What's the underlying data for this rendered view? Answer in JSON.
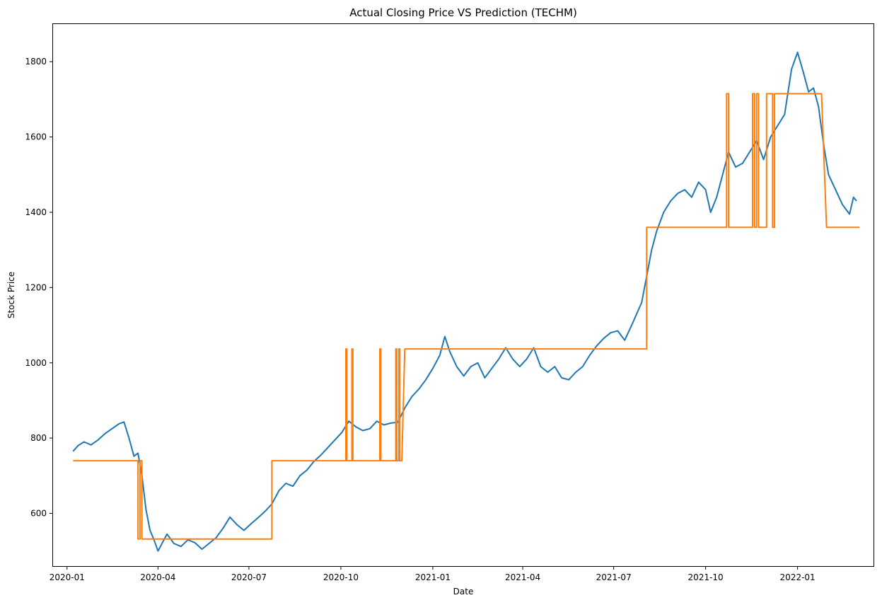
{
  "chart_data": {
    "type": "line",
    "title": "Actual Closing Price VS Prediction (TECHM)",
    "xlabel": "Date",
    "ylabel": "Stock Price",
    "xlim": [
      "2019-12-18",
      "2022-03-18"
    ],
    "ylim": [
      460,
      1900
    ],
    "grid": false,
    "x_ticks": [
      "2020-01-01",
      "2020-04-01",
      "2020-07-01",
      "2020-10-01",
      "2021-01-01",
      "2021-04-01",
      "2021-07-01",
      "2021-10-01",
      "2022-01-01"
    ],
    "x_tick_labels": [
      "2020-01",
      "2020-04",
      "2020-07",
      "2020-10",
      "2021-01",
      "2021-04",
      "2021-07",
      "2021-10",
      "2022-01"
    ],
    "y_ticks": [
      600,
      800,
      1000,
      1200,
      1400,
      1600,
      1800
    ],
    "y_tick_labels": [
      "600",
      "800",
      "1000",
      "1200",
      "1400",
      "1600",
      "1800"
    ],
    "series": [
      {
        "color": "#1f77b4",
        "points": [
          [
            "2020-01-07",
            765
          ],
          [
            "2020-01-12",
            780
          ],
          [
            "2020-01-18",
            790
          ],
          [
            "2020-01-25",
            782
          ],
          [
            "2020-02-01",
            795
          ],
          [
            "2020-02-08",
            812
          ],
          [
            "2020-02-15",
            825
          ],
          [
            "2020-02-22",
            838
          ],
          [
            "2020-02-27",
            843
          ],
          [
            "2020-03-03",
            800
          ],
          [
            "2020-03-08",
            752
          ],
          [
            "2020-03-12",
            760
          ],
          [
            "2020-03-16",
            700
          ],
          [
            "2020-03-20",
            610
          ],
          [
            "2020-03-24",
            555
          ],
          [
            "2020-03-28",
            530
          ],
          [
            "2020-04-01",
            500
          ],
          [
            "2020-04-05",
            520
          ],
          [
            "2020-04-10",
            545
          ],
          [
            "2020-04-17",
            520
          ],
          [
            "2020-04-24",
            512
          ],
          [
            "2020-05-01",
            530
          ],
          [
            "2020-05-08",
            522
          ],
          [
            "2020-05-15",
            505
          ],
          [
            "2020-05-22",
            520
          ],
          [
            "2020-05-29",
            535
          ],
          [
            "2020-06-05",
            560
          ],
          [
            "2020-06-12",
            590
          ],
          [
            "2020-06-19",
            570
          ],
          [
            "2020-06-26",
            555
          ],
          [
            "2020-07-03",
            572
          ],
          [
            "2020-07-10",
            588
          ],
          [
            "2020-07-17",
            605
          ],
          [
            "2020-07-24",
            625
          ],
          [
            "2020-07-31",
            660
          ],
          [
            "2020-08-07",
            680
          ],
          [
            "2020-08-14",
            672
          ],
          [
            "2020-08-21",
            700
          ],
          [
            "2020-08-28",
            715
          ],
          [
            "2020-09-04",
            738
          ],
          [
            "2020-09-11",
            755
          ],
          [
            "2020-09-18",
            775
          ],
          [
            "2020-09-25",
            795
          ],
          [
            "2020-10-02",
            815
          ],
          [
            "2020-10-09",
            845
          ],
          [
            "2020-10-16",
            830
          ],
          [
            "2020-10-23",
            820
          ],
          [
            "2020-10-30",
            825
          ],
          [
            "2020-11-06",
            845
          ],
          [
            "2020-11-13",
            835
          ],
          [
            "2020-11-20",
            840
          ],
          [
            "2020-11-27",
            842
          ],
          [
            "2020-12-04",
            880
          ],
          [
            "2020-12-11",
            910
          ],
          [
            "2020-12-18",
            930
          ],
          [
            "2020-12-25",
            955
          ],
          [
            "2021-01-01",
            985
          ],
          [
            "2021-01-08",
            1020
          ],
          [
            "2021-01-13",
            1070
          ],
          [
            "2021-01-18",
            1030
          ],
          [
            "2021-01-25",
            990
          ],
          [
            "2021-02-01",
            965
          ],
          [
            "2021-02-08",
            990
          ],
          [
            "2021-02-15",
            1000
          ],
          [
            "2021-02-22",
            960
          ],
          [
            "2021-03-01",
            985
          ],
          [
            "2021-03-08",
            1010
          ],
          [
            "2021-03-15",
            1040
          ],
          [
            "2021-03-22",
            1010
          ],
          [
            "2021-03-29",
            990
          ],
          [
            "2021-04-05",
            1010
          ],
          [
            "2021-04-12",
            1040
          ],
          [
            "2021-04-19",
            990
          ],
          [
            "2021-04-26",
            975
          ],
          [
            "2021-05-03",
            990
          ],
          [
            "2021-05-10",
            960
          ],
          [
            "2021-05-17",
            955
          ],
          [
            "2021-05-24",
            975
          ],
          [
            "2021-05-31",
            990
          ],
          [
            "2021-06-07",
            1020
          ],
          [
            "2021-06-14",
            1045
          ],
          [
            "2021-06-21",
            1065
          ],
          [
            "2021-06-28",
            1080
          ],
          [
            "2021-07-05",
            1085
          ],
          [
            "2021-07-12",
            1060
          ],
          [
            "2021-07-19",
            1100
          ],
          [
            "2021-07-24",
            1130
          ],
          [
            "2021-07-29",
            1160
          ],
          [
            "2021-08-03",
            1230
          ],
          [
            "2021-08-08",
            1300
          ],
          [
            "2021-08-13",
            1350
          ],
          [
            "2021-08-20",
            1400
          ],
          [
            "2021-08-27",
            1430
          ],
          [
            "2021-09-03",
            1450
          ],
          [
            "2021-09-10",
            1460
          ],
          [
            "2021-09-17",
            1440
          ],
          [
            "2021-09-24",
            1480
          ],
          [
            "2021-10-01",
            1460
          ],
          [
            "2021-10-06",
            1400
          ],
          [
            "2021-10-12",
            1440
          ],
          [
            "2021-10-18",
            1500
          ],
          [
            "2021-10-24",
            1560
          ],
          [
            "2021-10-31",
            1520
          ],
          [
            "2021-11-07",
            1530
          ],
          [
            "2021-11-14",
            1560
          ],
          [
            "2021-11-21",
            1590
          ],
          [
            "2021-11-28",
            1540
          ],
          [
            "2021-12-05",
            1600
          ],
          [
            "2021-12-12",
            1630
          ],
          [
            "2021-12-19",
            1660
          ],
          [
            "2021-12-26",
            1780
          ],
          [
            "2022-01-01",
            1825
          ],
          [
            "2022-01-07",
            1770
          ],
          [
            "2022-01-12",
            1720
          ],
          [
            "2022-01-17",
            1730
          ],
          [
            "2022-01-22",
            1680
          ],
          [
            "2022-01-27",
            1580
          ],
          [
            "2022-02-01",
            1500
          ],
          [
            "2022-02-08",
            1460
          ],
          [
            "2022-02-15",
            1420
          ],
          [
            "2022-02-22",
            1395
          ],
          [
            "2022-02-26",
            1440
          ],
          [
            "2022-03-01",
            1430
          ]
        ]
      },
      {
        "color": "#ff7f0e",
        "points": [
          [
            "2020-01-07",
            740
          ],
          [
            "2020-03-12",
            740
          ],
          [
            "2020-03-12",
            532
          ],
          [
            "2020-03-14",
            532
          ],
          [
            "2020-03-14",
            740
          ],
          [
            "2020-03-16",
            740
          ],
          [
            "2020-03-16",
            532
          ],
          [
            "2020-07-24",
            532
          ],
          [
            "2020-07-24",
            740
          ],
          [
            "2020-10-06",
            740
          ],
          [
            "2020-10-06",
            1037
          ],
          [
            "2020-10-07",
            1037
          ],
          [
            "2020-10-07",
            740
          ],
          [
            "2020-10-12",
            740
          ],
          [
            "2020-10-12",
            1037
          ],
          [
            "2020-10-13",
            1037
          ],
          [
            "2020-10-13",
            740
          ],
          [
            "2020-11-09",
            740
          ],
          [
            "2020-11-09",
            1037
          ],
          [
            "2020-11-10",
            1037
          ],
          [
            "2020-11-10",
            740
          ],
          [
            "2020-11-25",
            740
          ],
          [
            "2020-11-25",
            1037
          ],
          [
            "2020-11-26",
            1037
          ],
          [
            "2020-11-26",
            740
          ],
          [
            "2020-11-28",
            740
          ],
          [
            "2020-11-28",
            1037
          ],
          [
            "2020-11-29",
            1037
          ],
          [
            "2020-11-29",
            740
          ],
          [
            "2020-12-01",
            740
          ],
          [
            "2020-12-04",
            1037
          ],
          [
            "2021-08-03",
            1037
          ],
          [
            "2021-08-03",
            1360
          ],
          [
            "2021-10-22",
            1360
          ],
          [
            "2021-10-22",
            1715
          ],
          [
            "2021-10-24",
            1715
          ],
          [
            "2021-10-24",
            1360
          ],
          [
            "2021-11-17",
            1360
          ],
          [
            "2021-11-17",
            1715
          ],
          [
            "2021-11-19",
            1715
          ],
          [
            "2021-11-19",
            1360
          ],
          [
            "2021-11-21",
            1360
          ],
          [
            "2021-11-21",
            1715
          ],
          [
            "2021-11-23",
            1715
          ],
          [
            "2021-11-23",
            1360
          ],
          [
            "2021-12-01",
            1360
          ],
          [
            "2021-12-01",
            1715
          ],
          [
            "2021-12-07",
            1715
          ],
          [
            "2021-12-07",
            1360
          ],
          [
            "2021-12-09",
            1360
          ],
          [
            "2021-12-09",
            1715
          ],
          [
            "2022-01-25",
            1715
          ],
          [
            "2022-01-30",
            1360
          ],
          [
            "2022-03-04",
            1360
          ]
        ]
      }
    ]
  }
}
